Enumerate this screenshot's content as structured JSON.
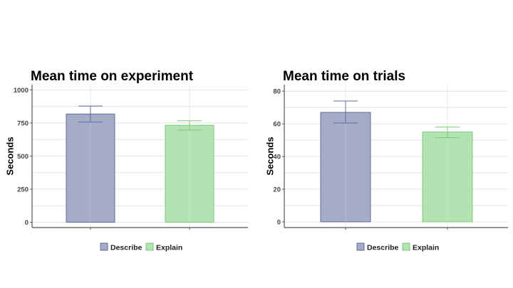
{
  "colors": {
    "describe_fill": "#a4acc8",
    "describe_stroke": "#5e6b99",
    "explain_fill": "#b3e3b2",
    "explain_stroke": "#7cc97b",
    "grid": "#e3e3e3",
    "axis": "#555555"
  },
  "chart_data": [
    {
      "type": "bar",
      "title": "Mean time on experiment",
      "ylabel": "Seconds",
      "xlabel": "",
      "categories": [
        "Describe",
        "Explain"
      ],
      "values": [
        818,
        733
      ],
      "error_low": [
        757,
        697
      ],
      "error_high": [
        878,
        767
      ],
      "ylim": [
        -40,
        1040
      ],
      "yticks": [
        0,
        250,
        500,
        750,
        1000
      ],
      "grid": true,
      "legend": {
        "position": "bottom",
        "entries": [
          "Describe",
          "Explain"
        ]
      }
    },
    {
      "type": "bar",
      "title": "Mean time on trials",
      "ylabel": "Seconds",
      "xlabel": "",
      "categories": [
        "Describe",
        "Explain"
      ],
      "values": [
        67,
        55
      ],
      "error_low": [
        60.5,
        51.5
      ],
      "error_high": [
        74,
        58
      ],
      "ylim": [
        -3.5,
        84
      ],
      "yticks": [
        0,
        20,
        40,
        60,
        80
      ],
      "grid": true,
      "legend": {
        "position": "bottom",
        "entries": [
          "Describe",
          "Explain"
        ]
      }
    }
  ]
}
